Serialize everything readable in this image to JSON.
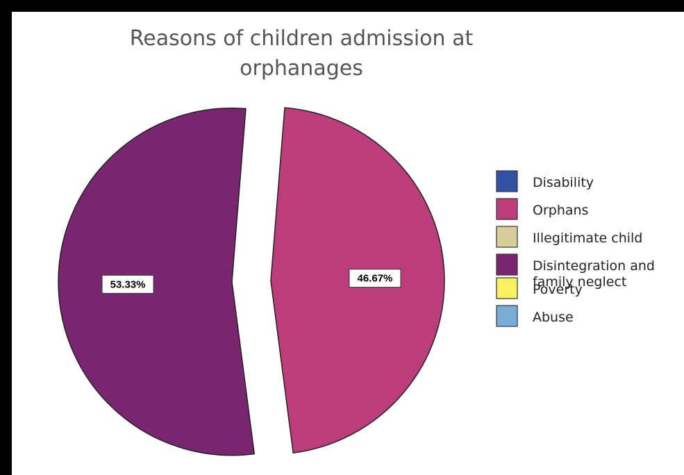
{
  "chart_data": {
    "type": "pie",
    "title": "Reasons of children admission at orphanages",
    "categories": [
      "Disability",
      "Orphans",
      "Illegitimate child",
      "Disintegration and family neglect",
      "Poverty",
      "Abuse"
    ],
    "values": [
      0,
      46.67,
      0,
      53.33,
      0,
      0
    ],
    "data_labels": [
      "",
      "46.67%",
      "",
      "53.33%",
      "",
      ""
    ],
    "colors": [
      "#3451a8",
      "#bb3d7c",
      "#d7cf9a",
      "#79256f",
      "#f7f163",
      "#7aacd8"
    ],
    "exploded": true,
    "legend_position": "right"
  }
}
